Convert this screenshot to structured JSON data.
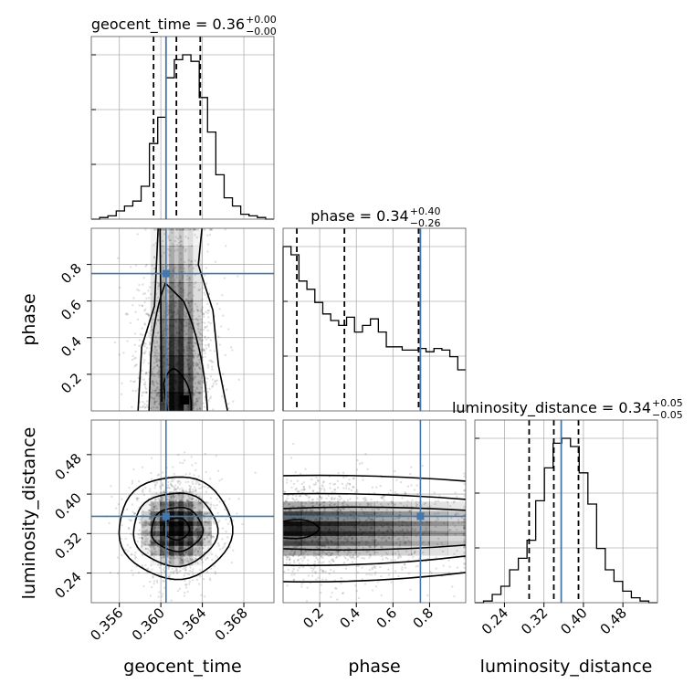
{
  "chart_data": {
    "type": "corner",
    "params": [
      "geocent_time",
      "phase",
      "luminosity_distance"
    ],
    "axis_labels": [
      "geocent_time",
      "phase",
      "luminosity_distance"
    ],
    "truths": [
      0.3605,
      0.75,
      0.355
    ],
    "truth_color": "#4477aa",
    "ranges": [
      [
        0.3533,
        0.3709
      ],
      [
        0.0,
        0.9973
      ],
      [
        0.18,
        0.55
      ]
    ],
    "ticks": {
      "geocent_time": [
        "0.356",
        "0.360",
        "0.364",
        "0.368"
      ],
      "phase": [
        "0.2",
        "0.4",
        "0.6",
        "0.8"
      ],
      "luminosity_distance": [
        "0.24",
        "0.32",
        "0.40",
        "0.48"
      ]
    },
    "ytick_labels_row1": [
      "0.2",
      "0.4",
      "0.6",
      "0.8"
    ],
    "ytick_labels_row2": [
      "0.24",
      "0.32",
      "0.40",
      "0.48"
    ],
    "titles": [
      {
        "name": "geocent_time",
        "value": "0.36",
        "plus": "+0.00",
        "minus": "−0.00"
      },
      {
        "name": "phase",
        "value": "0.34",
        "plus": "+0.40",
        "minus": "−0.26"
      },
      {
        "name": "luminosity_distance",
        "value": "0.34",
        "plus": "+0.05",
        "minus": "−0.05"
      }
    ],
    "quantiles": {
      "geocent_time": [
        0.3593,
        0.3615,
        0.3638
      ],
      "phase": [
        0.075,
        0.335,
        0.74
      ],
      "luminosity_distance": [
        0.29,
        0.34,
        0.39
      ]
    },
    "histograms": {
      "geocent_time": [
        0.0,
        0.01,
        0.02,
        0.05,
        0.08,
        0.11,
        0.2,
        0.46,
        0.62,
        0.86,
        0.97,
        1.0,
        0.96,
        0.74,
        0.53,
        0.27,
        0.13,
        0.08,
        0.03,
        0.02,
        0.01,
        0.0
      ],
      "phase": [
        1.0,
        0.95,
        0.79,
        0.74,
        0.66,
        0.59,
        0.55,
        0.52,
        0.57,
        0.48,
        0.52,
        0.56,
        0.48,
        0.39,
        0.39,
        0.37,
        0.37,
        0.38,
        0.36,
        0.38,
        0.37,
        0.33,
        0.25
      ],
      "luminosity_distance": [
        0.0,
        0.01,
        0.05,
        0.1,
        0.2,
        0.27,
        0.38,
        0.62,
        0.82,
        0.97,
        1.0,
        0.95,
        0.79,
        0.6,
        0.33,
        0.2,
        0.13,
        0.07,
        0.03,
        0.01,
        0.0
      ]
    },
    "grid": true
  }
}
